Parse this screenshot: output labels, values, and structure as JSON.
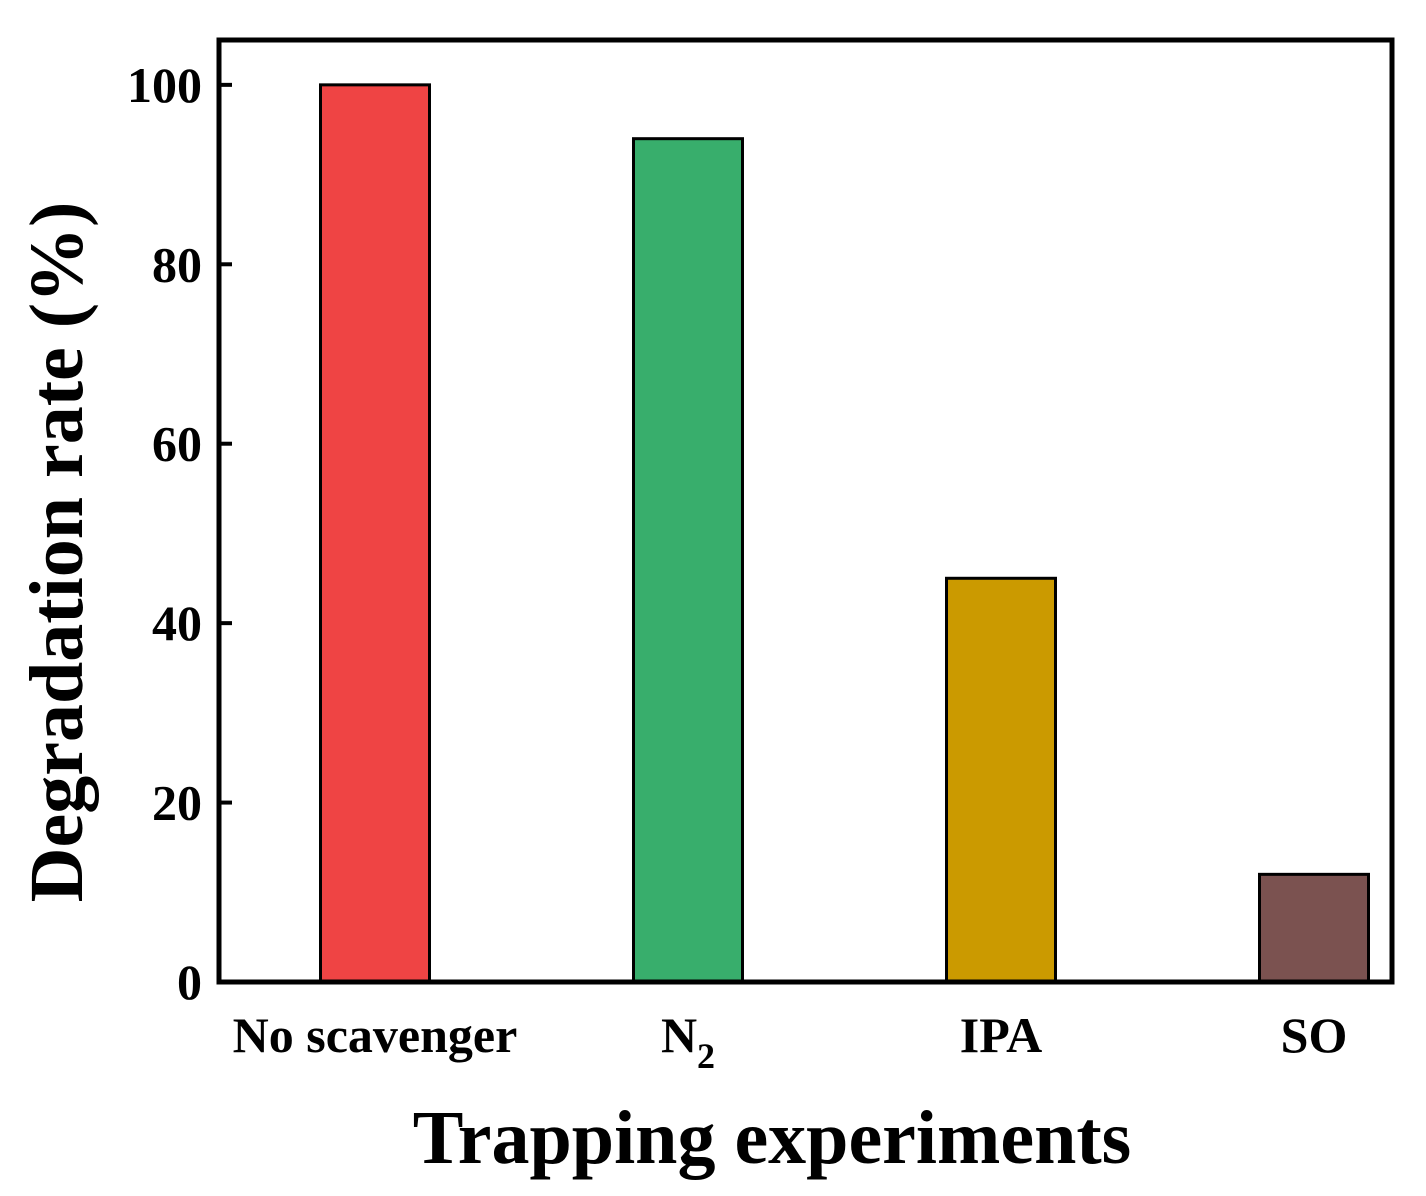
{
  "chart_data": {
    "type": "bar",
    "categories": [
      "No scavenger",
      "N2",
      "IPA",
      "SO"
    ],
    "category_labels": [
      {
        "main": "No scavenger",
        "sub": ""
      },
      {
        "main": "N",
        "sub": "2"
      },
      {
        "main": "IPA",
        "sub": ""
      },
      {
        "main": "SO",
        "sub": ""
      }
    ],
    "values": [
      100,
      94,
      45,
      12
    ],
    "colors": [
      "#ef4444",
      "#38ae6c",
      "#cb9a00",
      "#7b5250"
    ],
    "title": "",
    "xlabel": "Trapping experiments",
    "ylabel": "Degradation rate (%)",
    "ylim": [
      0,
      105
    ],
    "yticks": [
      0,
      20,
      40,
      60,
      80,
      100
    ],
    "grid": false,
    "legend": "none"
  }
}
